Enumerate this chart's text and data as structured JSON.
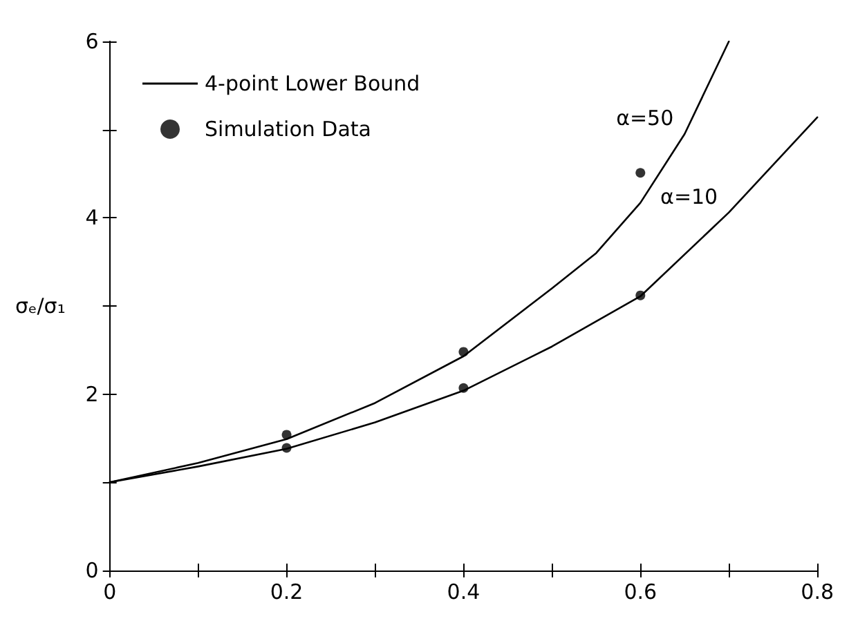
{
  "chart_data": {
    "type": "line",
    "ylabel": "σₑ/σ₁",
    "xlim": [
      0,
      0.8
    ],
    "ylim": [
      0,
      6
    ],
    "xticks": [
      0,
      {
        "value": 0.1,
        "label": null
      },
      0.2,
      {
        "value": 0.3,
        "label": null
      },
      0.4,
      {
        "value": 0.5,
        "label": null
      },
      0.6,
      {
        "value": 0.7,
        "label": null
      },
      0.8
    ],
    "yticks": [
      0,
      {
        "value": 1,
        "label": null
      },
      2,
      {
        "value": 3,
        "label": null
      },
      4,
      {
        "value": 5,
        "label": null
      },
      6
    ],
    "grid": false,
    "legend": "top left",
    "series": [
      {
        "name": "4-point Lower Bound",
        "color": "#000000",
        "marker": "none",
        "line_style": "solid",
        "x": [
          0,
          0.1,
          0.2,
          0.3,
          0.4,
          0.5,
          0.55,
          0.6,
          0.65,
          0.7
        ],
        "values": [
          1,
          1.22,
          1.49,
          1.9,
          2.43,
          3.2,
          3.6,
          4.17,
          4.95,
          6
        ]
      },
      {
        "color": "#000000",
        "marker": "none",
        "line_style": "solid",
        "x": [
          0,
          0.1,
          0.2,
          0.3,
          0.4,
          0.5,
          0.6,
          0.7,
          0.8
        ],
        "values": [
          1,
          1.18,
          1.38,
          1.68,
          2.04,
          2.54,
          3.11,
          4.06,
          5.14
        ]
      },
      {
        "name": "Simulation Data",
        "type": "scatter",
        "color": "#000000",
        "marker": "circle",
        "x": [
          0.2,
          0.4,
          0.6,
          0.2,
          0.4,
          0.6
        ],
        "values": [
          1.54,
          2.48,
          4.51,
          1.39,
          2.07,
          3.12
        ]
      }
    ],
    "annotations": [
      {
        "text": "α=50",
        "x": 0.65,
        "y": 4.95
      },
      {
        "text": "α=10",
        "x": 0.7,
        "y": 4.06
      }
    ]
  }
}
